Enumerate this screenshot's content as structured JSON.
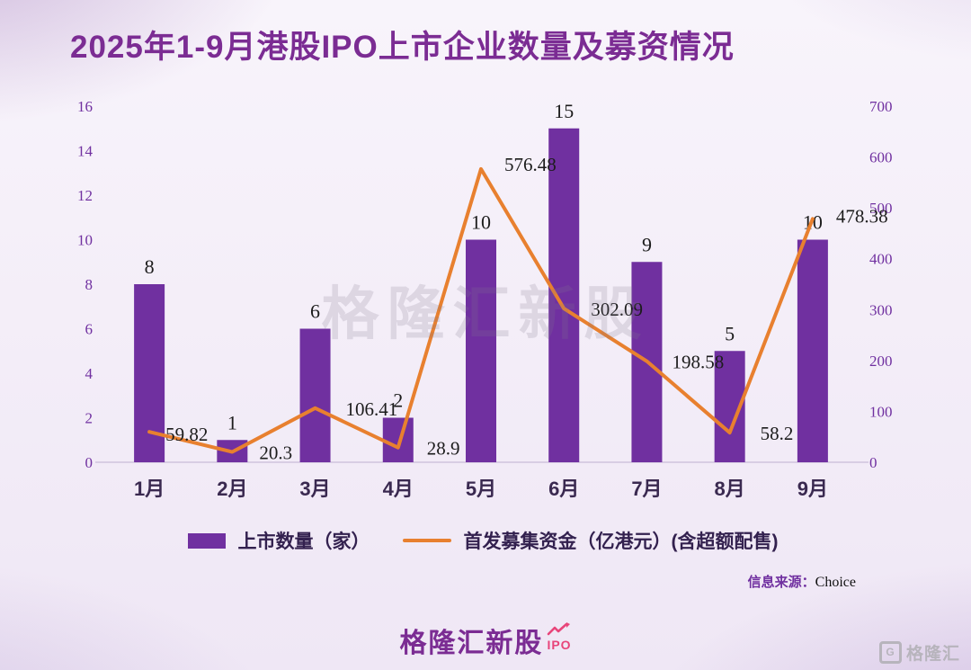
{
  "title": "2025年1-9月港股IPO上市企业数量及募资情况",
  "chart_data": {
    "type": "bar",
    "title": "2025年1-9月港股IPO上市企业数量及募资情况",
    "categories": [
      "1月",
      "2月",
      "3月",
      "4月",
      "5月",
      "6月",
      "7月",
      "8月",
      "9月"
    ],
    "series": [
      {
        "name": "上市数量（家）",
        "type": "bar",
        "axis": "left",
        "color": "#7030A0",
        "values": [
          8,
          1,
          6,
          2,
          10,
          15,
          9,
          5,
          10
        ]
      },
      {
        "name": "首发募集资金（亿港元）(含超额配售)",
        "type": "line",
        "axis": "right",
        "color": "#E8802F",
        "values": [
          59.82,
          20.3,
          106.41,
          28.9,
          576.48,
          302.09,
          198.58,
          58.2,
          478.38
        ]
      }
    ],
    "left_axis": {
      "min": 0,
      "max": 16,
      "ticks": [
        0,
        2,
        4,
        6,
        8,
        10,
        12,
        14,
        16
      ]
    },
    "right_axis": {
      "min": 0,
      "max": 700,
      "ticks": [
        0,
        100,
        200,
        300,
        400,
        500,
        600,
        700
      ]
    },
    "grid": false,
    "legend_position": "bottom"
  },
  "source_note": {
    "prefix": "信息来源：",
    "source": "Choice"
  },
  "watermark": {
    "center": "格隆汇新股",
    "corner": "格隆汇",
    "corner_icon": "G"
  },
  "footer": {
    "brand": "格隆汇新股",
    "badge": "IPO"
  },
  "colors": {
    "title": "#7B2C93",
    "bar": "#7030A0",
    "line": "#E8802F",
    "axis_text": "#7030A0",
    "value_text": "#1c1c1c",
    "x_label": "#3a2950"
  }
}
